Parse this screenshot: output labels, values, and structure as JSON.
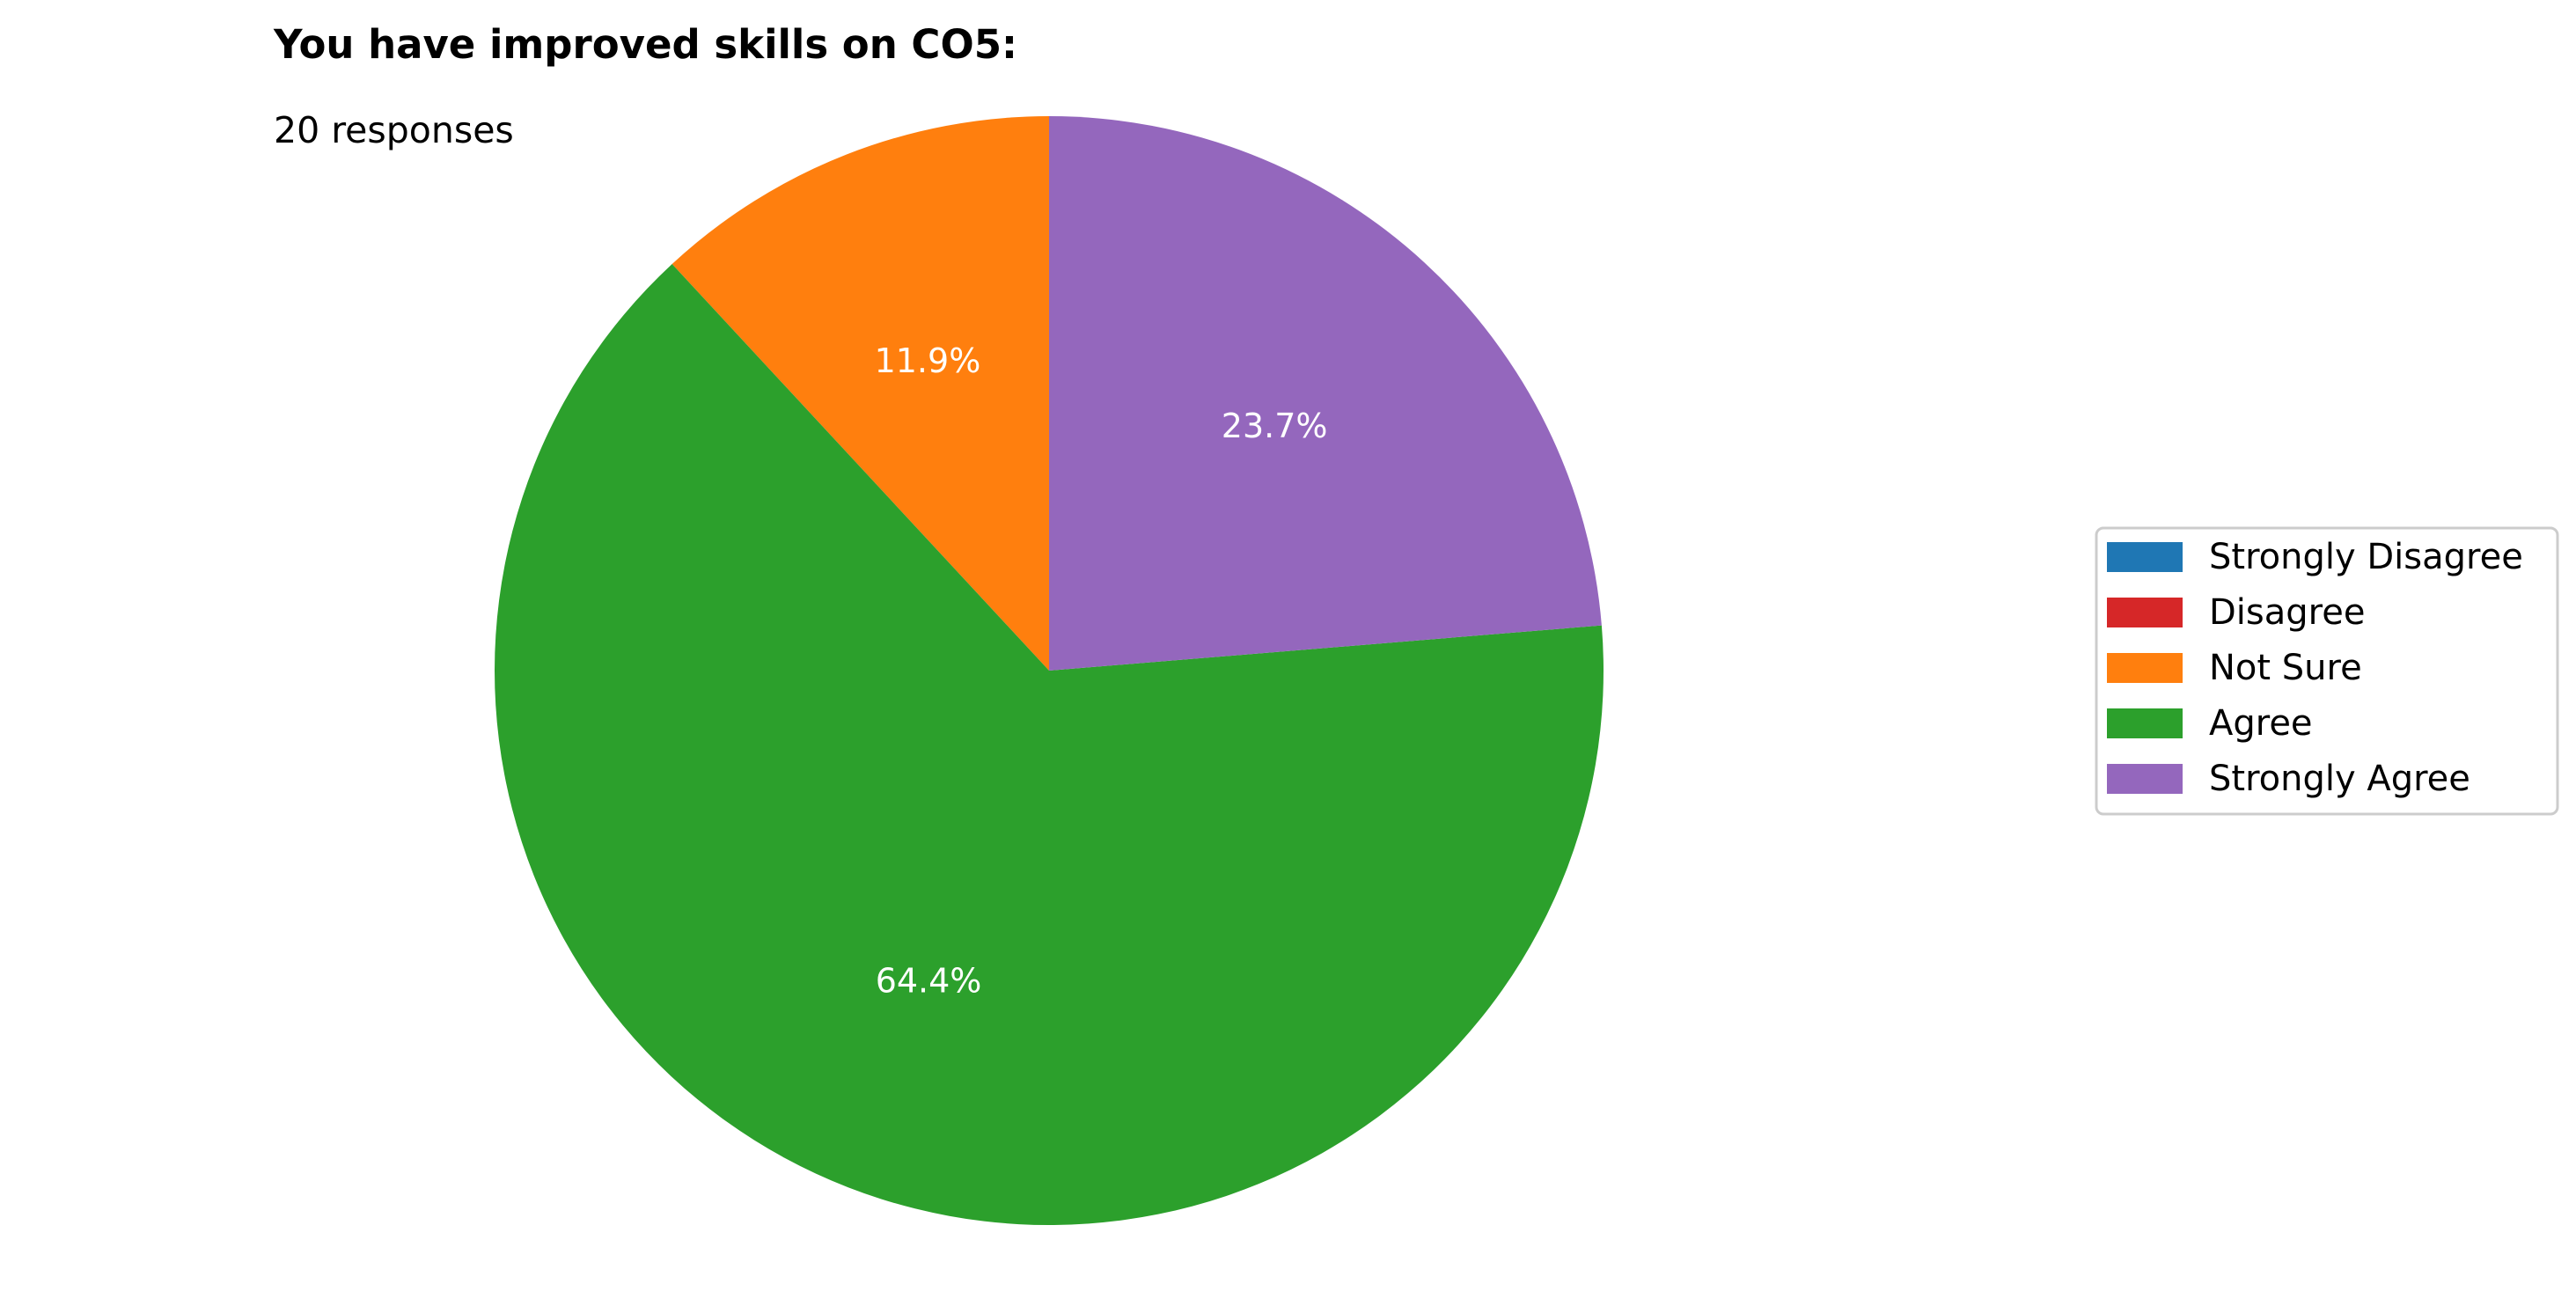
{
  "chart_data": {
    "type": "pie",
    "title": "You have improved skills on CO5:",
    "subtitle": "20 responses",
    "labels": [
      "Strongly Disagree",
      "Disagree",
      "Not Sure",
      "Agree",
      "Strongly Agree"
    ],
    "values": [
      0,
      0,
      11.9,
      64.4,
      23.7
    ],
    "value_labels": [
      "",
      "",
      "11.9%",
      "64.4%",
      "23.7%"
    ],
    "colors": [
      "#1f77b4",
      "#d62728",
      "#ff7f0e",
      "#2ca02c",
      "#9467bd"
    ],
    "label_color": "#ffffff",
    "start": "top",
    "direction": "counterclockwise",
    "legend_position": "right"
  }
}
